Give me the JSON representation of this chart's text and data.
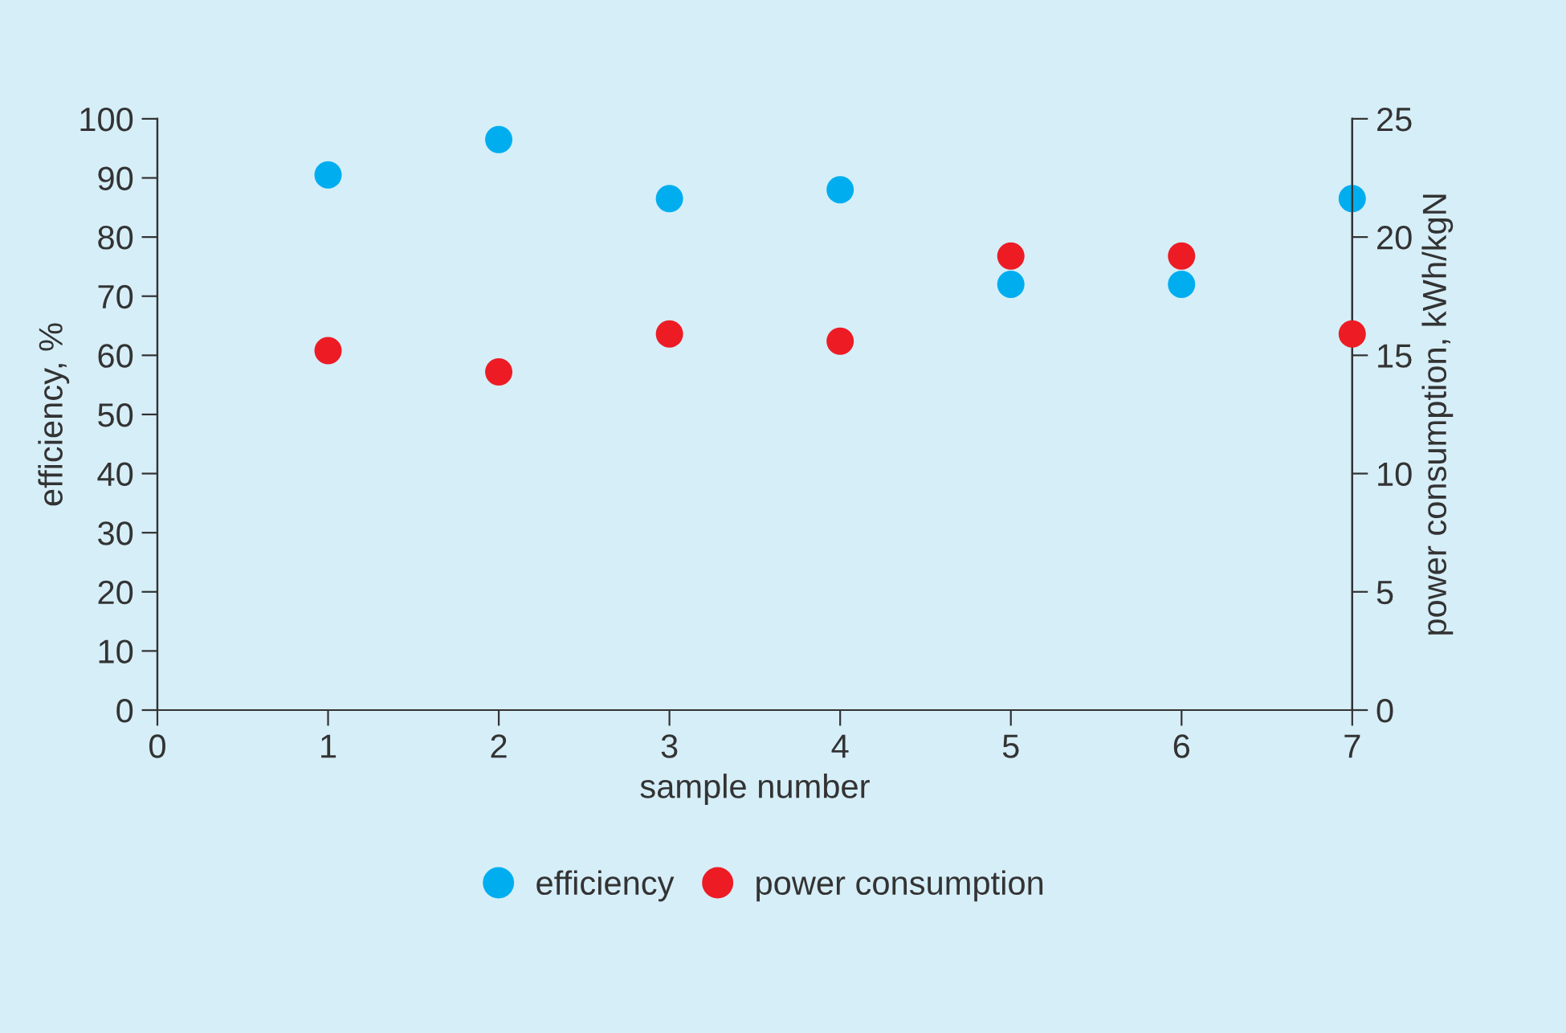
{
  "chart_data": {
    "type": "scatter",
    "xlabel": "sample number",
    "ylabel": "efficiency, %",
    "y2label": "power consumption, kWh/kgN",
    "x": [
      1,
      2,
      3,
      4,
      5,
      6,
      7
    ],
    "series": [
      {
        "name": "efficiency",
        "color": "#00aeef",
        "values": [
          90.5,
          96.5,
          86.5,
          88,
          72,
          72,
          86.5
        ]
      },
      {
        "name": "power consumption",
        "color": "#ed1c24",
        "axis": "y2",
        "values": [
          15.2,
          14.3,
          15.9,
          15.6,
          19.2,
          19.2,
          15.9
        ]
      }
    ],
    "xlim": [
      0,
      7
    ],
    "xticks": [
      0,
      1,
      2,
      3,
      4,
      5,
      6,
      7
    ],
    "ylim": [
      0,
      100
    ],
    "yticks": [
      0,
      10,
      20,
      30,
      40,
      50,
      60,
      70,
      80,
      90,
      100
    ],
    "y2lim": [
      0,
      25
    ],
    "y2ticks": [
      0,
      5,
      10,
      15,
      20,
      25
    ],
    "marker": "circle",
    "grid": false,
    "legend": "bottom"
  }
}
